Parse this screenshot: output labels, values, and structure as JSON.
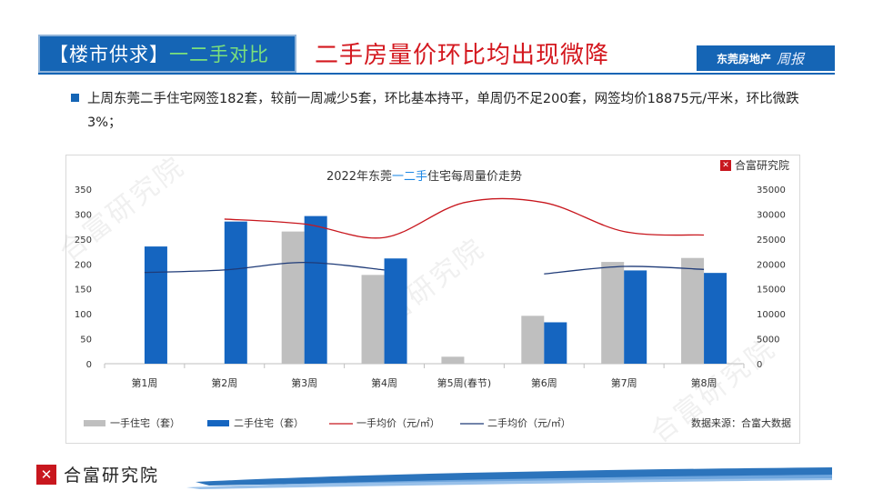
{
  "header": {
    "section_part1": "【楼市供求】",
    "section_part2": "一二手对比",
    "headline": "二手房量价环比均出现微降",
    "brand": "东莞房地产",
    "brand_script": "周报"
  },
  "bullet": "上周东莞二手住宅网签182套，较前一周减少5套，环比基本持平，单周仍不足200套，网签均价18875元/平米，环比微跌3%；",
  "chart_logo": "合富研究院",
  "watermark": "合富研究院",
  "footer_logo": "合富研究院",
  "colors": {
    "brand_blue": "#1565b5",
    "headline_red": "#d4181f",
    "logo_red": "#c8171e",
    "bar_new": "#bfbfbf",
    "bar_second": "#1565c0",
    "line_new": "#c8171e",
    "line_second": "#1f3b78"
  },
  "chart_data": {
    "type": "bar",
    "title_parts": [
      "2022年东莞",
      "一二手",
      "住宅每周量价走势"
    ],
    "categories": [
      "第1周",
      "第2周",
      "第3周",
      "第4周",
      "第5周(春节)",
      "第6周",
      "第7周",
      "第8周"
    ],
    "series": [
      {
        "name": "一手住宅（套）",
        "kind": "bar",
        "axis": "left",
        "values": [
          null,
          null,
          265,
          178,
          14,
          96,
          204,
          212
        ]
      },
      {
        "name": "二手住宅（套）",
        "kind": "bar",
        "axis": "left",
        "values": [
          235,
          285,
          296,
          211,
          null,
          83,
          187,
          182
        ]
      },
      {
        "name": "一手均价（元/㎡）",
        "kind": "line",
        "axis": "right",
        "values": [
          null,
          29000,
          28000,
          25300,
          32300,
          32300,
          26500,
          25800
        ]
      },
      {
        "name": "二手均价（元/㎡）",
        "kind": "line",
        "axis": "right",
        "values": [
          18300,
          18800,
          20300,
          18800,
          null,
          18000,
          19500,
          18900
        ]
      }
    ],
    "y_left": {
      "min": 0,
      "max": 350,
      "ticks": [
        0,
        50,
        100,
        150,
        200,
        250,
        300,
        350
      ]
    },
    "y_right": {
      "min": 0,
      "max": 35000,
      "ticks": [
        0,
        5000,
        10000,
        15000,
        20000,
        25000,
        30000,
        35000
      ]
    },
    "grid": false,
    "legend_position": "bottom",
    "source_note": "数据来源：合富大数据"
  }
}
